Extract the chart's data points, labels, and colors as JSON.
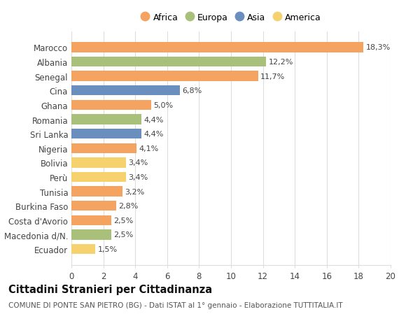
{
  "categories": [
    "Marocco",
    "Albania",
    "Senegal",
    "Cina",
    "Ghana",
    "Romania",
    "Sri Lanka",
    "Nigeria",
    "Bolivia",
    "Perù",
    "Tunisia",
    "Burkina Faso",
    "Costa d'Avorio",
    "Macedonia d/N.",
    "Ecuador"
  ],
  "values": [
    18.3,
    12.2,
    11.7,
    6.8,
    5.0,
    4.4,
    4.4,
    4.1,
    3.4,
    3.4,
    3.2,
    2.8,
    2.5,
    2.5,
    1.5
  ],
  "labels": [
    "18,3%",
    "12,2%",
    "11,7%",
    "6,8%",
    "5,0%",
    "4,4%",
    "4,4%",
    "4,1%",
    "3,4%",
    "3,4%",
    "3,2%",
    "2,8%",
    "2,5%",
    "2,5%",
    "1,5%"
  ],
  "continents": [
    "Africa",
    "Europa",
    "Africa",
    "Asia",
    "Africa",
    "Europa",
    "Asia",
    "Africa",
    "America",
    "America",
    "Africa",
    "Africa",
    "Africa",
    "Europa",
    "America"
  ],
  "continent_colors": {
    "Africa": "#F4A460",
    "Europa": "#A8C07A",
    "Asia": "#6A8FBF",
    "America": "#F5D26E"
  },
  "legend_order": [
    "Africa",
    "Europa",
    "Asia",
    "America"
  ],
  "xlim": [
    0,
    20
  ],
  "xticks": [
    0,
    2,
    4,
    6,
    8,
    10,
    12,
    14,
    16,
    18,
    20
  ],
  "title": "Cittadini Stranieri per Cittadinanza",
  "subtitle": "COMUNE DI PONTE SAN PIETRO (BG) - Dati ISTAT al 1° gennaio - Elaborazione TUTTITALIA.IT",
  "background_color": "#ffffff",
  "grid_color": "#dddddd",
  "bar_height": 0.7,
  "label_fontsize": 8.0,
  "title_fontsize": 10.5,
  "subtitle_fontsize": 7.5,
  "ytick_fontsize": 8.5,
  "xtick_fontsize": 8.5,
  "legend_fontsize": 9.0
}
